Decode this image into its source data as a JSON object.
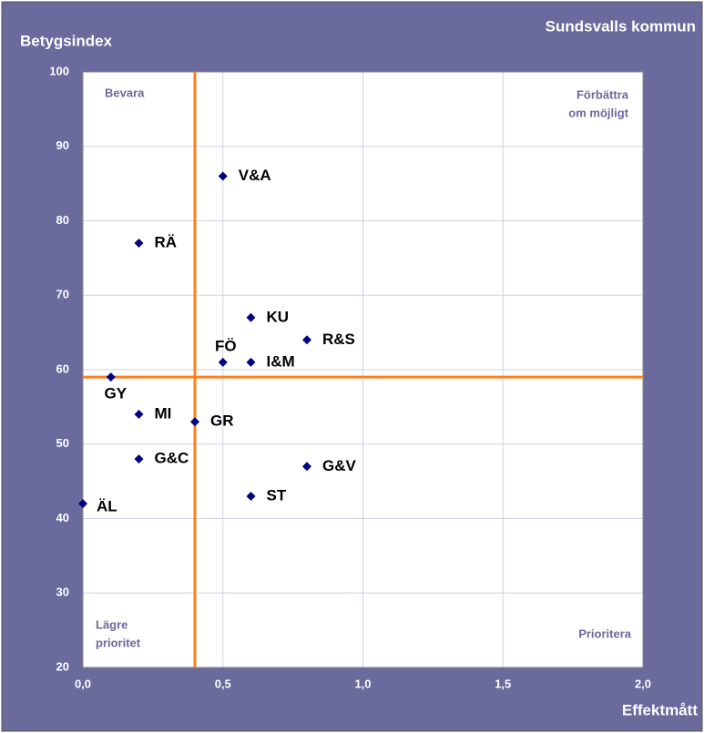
{
  "chart_data": {
    "type": "scatter",
    "title": "Sundsvalls kommun",
    "y_label": "Betygsindex",
    "x_label": "Effektmått",
    "x": [
      0.5,
      0.2,
      0.6,
      0.8,
      0.5,
      0.6,
      0.1,
      0.2,
      0.4,
      0.2,
      0.8,
      0.6,
      0
    ],
    "values": [
      86,
      77,
      67,
      64,
      61,
      61,
      59,
      54,
      53,
      48,
      47,
      43,
      42
    ],
    "point_labels": [
      "V&A",
      "RÄ",
      "KU",
      "R&S",
      "FÖ",
      "I&M",
      "GY",
      "MI",
      "GR",
      "G&C",
      "G&V",
      "ST",
      "ÄL"
    ],
    "color": "#000080",
    "xlim": [
      0,
      2
    ],
    "ylim": [
      20,
      100
    ],
    "xticks": [
      {
        "value": 0,
        "label": "0,0"
      },
      {
        "value": 0.5,
        "label": "0,5"
      },
      {
        "value": 1,
        "label": "1,0"
      },
      {
        "value": 1.5,
        "label": "1,5"
      },
      {
        "value": 2,
        "label": "2,0"
      }
    ],
    "yticks": [
      20,
      30,
      40,
      50,
      60,
      70,
      80,
      90,
      100
    ],
    "grid": true,
    "reference_x": 0.4,
    "reference_y": 59,
    "reference_color": "#ff7f1e",
    "quadrants": {
      "top_left": [
        "Bevara"
      ],
      "top_right": [
        "Förbättra",
        "om möjligt"
      ],
      "bottom_left": [
        "Lägre",
        "prioritet"
      ],
      "bottom_right": [
        "Prioritera"
      ]
    }
  }
}
